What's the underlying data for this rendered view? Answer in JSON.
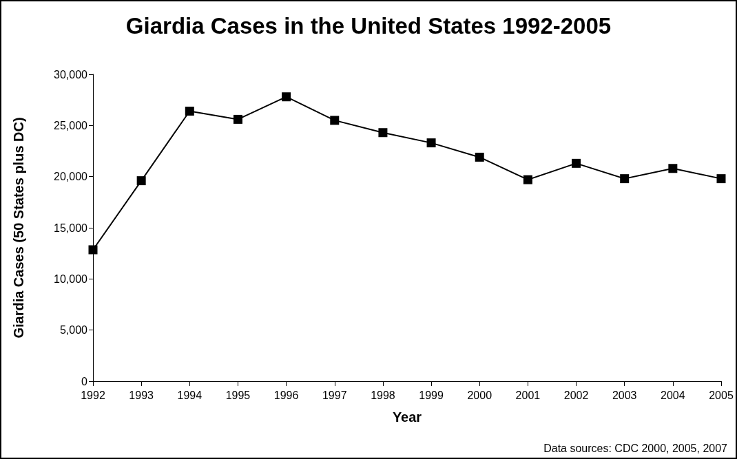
{
  "chart_data": {
    "type": "line",
    "title": "Giardia Cases in the United States 1992-2005",
    "xlabel": "Year",
    "ylabel": "Giardia Cases (50 States plus DC)",
    "annotations": [
      "Data sources: CDC 2000, 2005, 2007"
    ],
    "categories": [
      "1992",
      "1993",
      "1994",
      "1995",
      "1996",
      "1997",
      "1998",
      "1999",
      "2000",
      "2001",
      "2002",
      "2003",
      "2004",
      "2005"
    ],
    "series": [
      {
        "color": "#000000",
        "values": [
          12850,
          19600,
          26400,
          25600,
          27800,
          25500,
          24300,
          23300,
          21900,
          19700,
          21300,
          19800,
          20800,
          19800
        ]
      }
    ],
    "ylim": [
      0,
      30000
    ],
    "yticks": [
      0,
      {
        "value": 5000,
        "label": "5,000"
      },
      {
        "value": 10000,
        "label": "10,000"
      },
      {
        "value": 15000,
        "label": "15,000"
      },
      {
        "value": 20000,
        "label": "20,000"
      },
      {
        "value": 25000,
        "label": "25,000"
      },
      {
        "value": 30000,
        "label": "30,000"
      }
    ],
    "grid": false,
    "marker": "square",
    "line_style": "solid"
  }
}
